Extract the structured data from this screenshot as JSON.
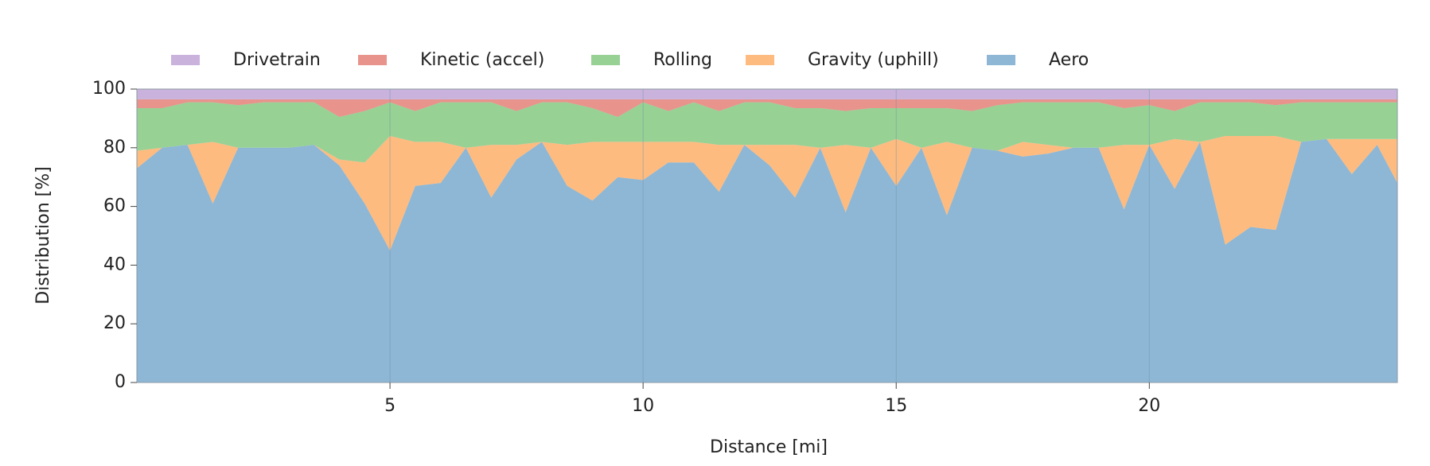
{
  "chart_data": {
    "type": "stacked_area",
    "x_label": "Distance [mi]",
    "y_label": "Distribution [%]",
    "x": [
      0,
      0.5,
      1,
      1.5,
      2,
      2.5,
      3,
      3.5,
      4,
      4.5,
      5,
      5.5,
      6,
      6.5,
      7,
      7.5,
      8,
      8.5,
      9,
      9.5,
      10,
      10.5,
      11,
      11.5,
      12,
      12.5,
      13,
      13.5,
      14,
      14.5,
      15,
      15.5,
      16,
      16.5,
      17,
      17.5,
      18,
      18.5,
      19,
      19.5,
      20,
      20.5,
      21,
      21.5,
      22,
      22.5,
      23,
      23.5,
      24,
      24.5,
      24.9
    ],
    "series": [
      {
        "name": "Drivetrain",
        "color": "#c9b3dc",
        "values": [
          3.5,
          3.5,
          3.5,
          3.5,
          3.5,
          3.5,
          3.5,
          3.5,
          3.5,
          3.5,
          3.5,
          3.5,
          3.5,
          3.5,
          3.5,
          3.5,
          3.5,
          3.5,
          3.5,
          3.5,
          3.5,
          3.5,
          3.5,
          3.5,
          3.5,
          3.5,
          3.5,
          3.5,
          3.5,
          3.5,
          3.5,
          3.5,
          3.5,
          3.5,
          3.5,
          3.5,
          3.5,
          3.5,
          3.5,
          3.5,
          3.5,
          3.5,
          3.5,
          3.5,
          3.5,
          3.5,
          3.5,
          3.5,
          3.5,
          3.5,
          3.5
        ]
      },
      {
        "name": "Kinetic (accel)",
        "color": "#e8938c",
        "values": [
          3,
          3,
          1,
          1,
          2,
          1,
          1,
          1,
          6,
          4,
          1,
          4,
          1,
          1,
          1,
          4,
          1,
          1,
          3,
          6,
          1,
          4,
          1,
          4,
          1,
          1,
          3,
          3,
          4,
          3,
          3,
          3,
          3,
          4,
          2,
          1,
          1,
          1,
          1,
          3,
          2,
          4,
          1,
          1,
          1,
          2,
          1,
          1,
          1,
          1,
          1
        ]
      },
      {
        "name": "Rolling",
        "color": "#97d194",
        "values": [
          14.5,
          13.5,
          14.5,
          13.5,
          14.5,
          15.5,
          15.5,
          14.5,
          14.5,
          17.5,
          11.5,
          10.5,
          13.5,
          15.5,
          14.5,
          11.5,
          13.5,
          14.5,
          11.5,
          8.5,
          13.5,
          10.5,
          13.5,
          11.5,
          14.5,
          14.5,
          12.5,
          13.5,
          11.5,
          13.5,
          10.5,
          13.5,
          11.5,
          12.5,
          15.5,
          13.5,
          14.5,
          15.5,
          15.5,
          12.5,
          13.5,
          9.5,
          13.5,
          11.5,
          11.5,
          10.5,
          13.5,
          12.5,
          12.5,
          12.5,
          12.5
        ]
      },
      {
        "name": "Gravity (uphill)",
        "color": "#fdbb80",
        "values": [
          6,
          0,
          0,
          21,
          0,
          0,
          0,
          0,
          2,
          14,
          39,
          15,
          14,
          0,
          18,
          5,
          0,
          14,
          20,
          12,
          13,
          7,
          7,
          16,
          0,
          7,
          18,
          0,
          23,
          0,
          16,
          0,
          25,
          0,
          0,
          5,
          3,
          0,
          0,
          22,
          0,
          17,
          0,
          37,
          31,
          32,
          0,
          0,
          12,
          2,
          15
        ]
      },
      {
        "name": "Aero",
        "color": "#8db7d5",
        "values": [
          73,
          80,
          81,
          61,
          80,
          80,
          80,
          81,
          74,
          61,
          45,
          67,
          68,
          80,
          63,
          76,
          82,
          67,
          62,
          70,
          69,
          75,
          75,
          65,
          81,
          74,
          63,
          80,
          58,
          80,
          67,
          80,
          57,
          80,
          79,
          77,
          78,
          80,
          80,
          59,
          81,
          66,
          82,
          47,
          53,
          52,
          82,
          83,
          71,
          81,
          68
        ]
      }
    ],
    "xlim": [
      0,
      24.9
    ],
    "ylim": [
      0,
      100
    ],
    "xticks": [
      5,
      10,
      15,
      20
    ],
    "yticks": [
      0,
      20,
      40,
      60,
      80,
      100
    ],
    "grid": true
  }
}
